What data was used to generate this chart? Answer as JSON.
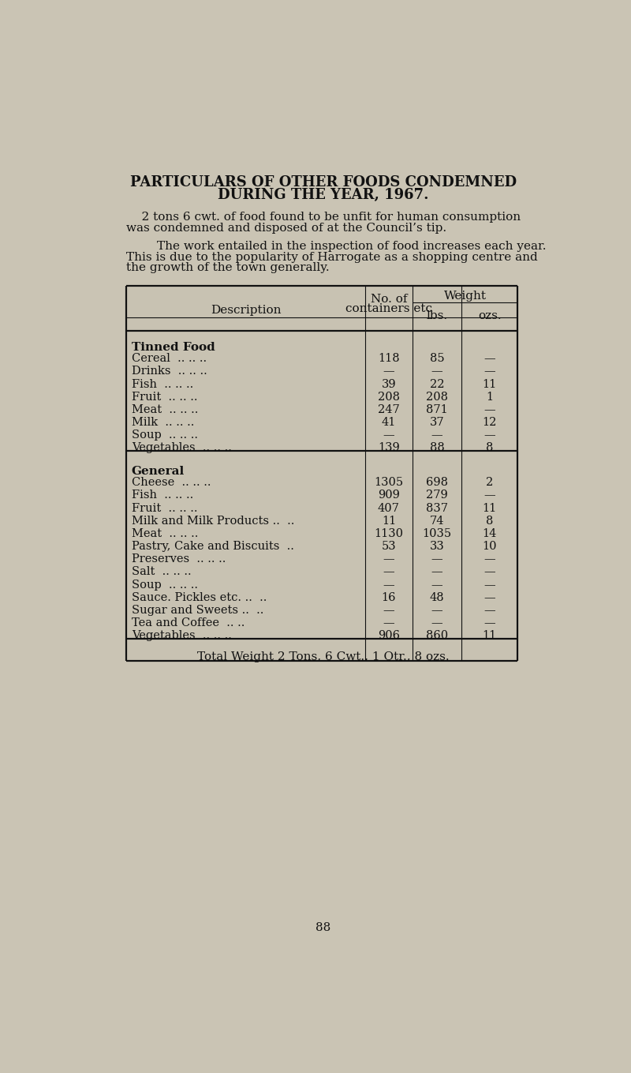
{
  "title_line1": "PARTICULARS OF OTHER FOODS CONDEMNED",
  "title_line2": "DURING THE YEAR, 1967.",
  "para1_indent": "    2 tons 6 cwt. of food found to be unfit for human consumption",
  "para1_line2": "was condemned and disposed of at the Council’s tip.",
  "para2_line1": "        The work entailed in the inspection of food increases each year.",
  "para2_line2": "This is due to the popularity of Harrogate as a shopping centre and",
  "para2_line3": "the growth of the town generally.",
  "weight_header": "Weight",
  "desc_header": "Description",
  "no_header1": "No. of",
  "no_header2": "containers etc",
  "lbs_header": "lbs.",
  "ozs_header": "ozs.",
  "section1_header": "Tinned Food",
  "section1_rows": [
    [
      "Cereal",
      ".. .. ..",
      "118",
      "85",
      "—"
    ],
    [
      "Drinks",
      ".. .. ..",
      "—",
      "—",
      "—"
    ],
    [
      "Fish",
      ".. .. ..",
      "39",
      "22",
      "11"
    ],
    [
      "Fruit",
      ".. .. ..",
      "208",
      "208",
      "1"
    ],
    [
      "Meat",
      ".. .. ..",
      "247",
      "871",
      "—"
    ],
    [
      "Milk",
      ".. .. ..",
      "41",
      "37",
      "12"
    ],
    [
      "Soup",
      ".. .. ..",
      "—",
      "—",
      "—"
    ],
    [
      "Vegetables",
      ".. .. ..",
      "139",
      "88",
      "8"
    ]
  ],
  "section2_header": "General",
  "section2_rows": [
    [
      "Cheese",
      ".. .. ..",
      "1305",
      "698",
      "2"
    ],
    [
      "Fish",
      ".. .. ..",
      "909",
      "279",
      "—"
    ],
    [
      "Fruit",
      ".. .. ..",
      "407",
      "837",
      "11"
    ],
    [
      "Milk and Milk Products ..",
      "..",
      "11",
      "74",
      "8"
    ],
    [
      "Meat",
      ".. .. ..",
      "1130",
      "1035",
      "14"
    ],
    [
      "Pastry, Cake and Biscuits",
      "..",
      "53",
      "33",
      "10"
    ],
    [
      "Preserves",
      ".. .. ..",
      "—",
      "—",
      "—"
    ],
    [
      "Salt",
      ".. .. ..",
      "—",
      "—",
      "—"
    ],
    [
      "Soup",
      ".. .. ..",
      "—",
      "—",
      "—"
    ],
    [
      "Sauce. Pickles etc. ..",
      "..",
      "16",
      "48",
      "—"
    ],
    [
      "Sugar and Sweets ..",
      "..",
      "—",
      "—",
      "—"
    ],
    [
      "Tea and Coffee",
      ".. ..",
      "—",
      "—",
      "—"
    ],
    [
      "Vegetables",
      ".. .. ..",
      "906",
      "860",
      "11"
    ]
  ],
  "total_row": "Total Weight 2 Tons, 6 Cwt., 1 Qtr., 8 ozs.",
  "page_number": "88",
  "bg_color": "#cac4b4",
  "table_bg": "#c8c2b2",
  "text_color": "#111111"
}
